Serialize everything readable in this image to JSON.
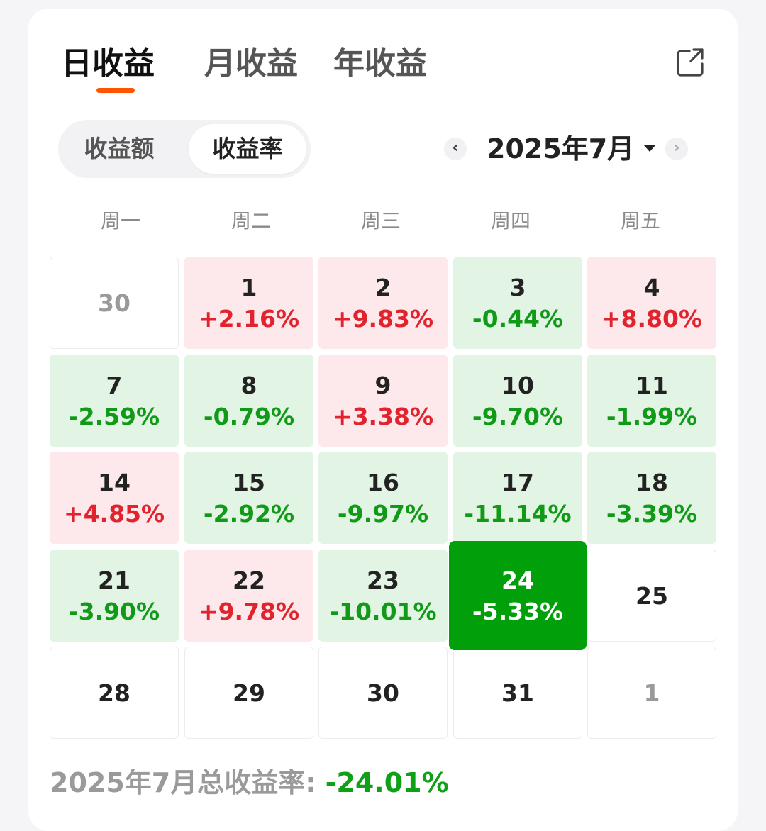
{
  "tabs": [
    {
      "label": "日收益",
      "active": true
    },
    {
      "label": "月收益",
      "active": false
    },
    {
      "label": "年收益",
      "active": false
    }
  ],
  "share_icon": "share-icon",
  "segment": {
    "options": [
      "收益额",
      "收益率"
    ],
    "selected": "收益率"
  },
  "month_picker": {
    "prev_glyph": "‹",
    "label": "2025年7月",
    "next_glyph": "›"
  },
  "weekdays": [
    "周一",
    "周二",
    "周三",
    "周四",
    "周五"
  ],
  "calendar": [
    [
      {
        "day": "30",
        "pct": "",
        "state": "empty-muted"
      },
      {
        "day": "1",
        "pct": "+2.16%",
        "state": "up"
      },
      {
        "day": "2",
        "pct": "+9.83%",
        "state": "up"
      },
      {
        "day": "3",
        "pct": "-0.44%",
        "state": "down"
      },
      {
        "day": "4",
        "pct": "+8.80%",
        "state": "up"
      }
    ],
    [
      {
        "day": "7",
        "pct": "-2.59%",
        "state": "down"
      },
      {
        "day": "8",
        "pct": "-0.79%",
        "state": "down"
      },
      {
        "day": "9",
        "pct": "+3.38%",
        "state": "up"
      },
      {
        "day": "10",
        "pct": "-9.70%",
        "state": "down"
      },
      {
        "day": "11",
        "pct": "-1.99%",
        "state": "down"
      }
    ],
    [
      {
        "day": "14",
        "pct": "+4.85%",
        "state": "up"
      },
      {
        "day": "15",
        "pct": "-2.92%",
        "state": "down"
      },
      {
        "day": "16",
        "pct": "-9.97%",
        "state": "down"
      },
      {
        "day": "17",
        "pct": "-11.14%",
        "state": "down"
      },
      {
        "day": "18",
        "pct": "-3.39%",
        "state": "down"
      }
    ],
    [
      {
        "day": "21",
        "pct": "-3.90%",
        "state": "down"
      },
      {
        "day": "22",
        "pct": "+9.78%",
        "state": "up"
      },
      {
        "day": "23",
        "pct": "-10.01%",
        "state": "down"
      },
      {
        "day": "24",
        "pct": "-5.33%",
        "state": "selected"
      },
      {
        "day": "25",
        "pct": "",
        "state": "empty"
      }
    ],
    [
      {
        "day": "28",
        "pct": "",
        "state": "empty"
      },
      {
        "day": "29",
        "pct": "",
        "state": "empty"
      },
      {
        "day": "30",
        "pct": "",
        "state": "empty"
      },
      {
        "day": "31",
        "pct": "",
        "state": "empty"
      },
      {
        "day": "1",
        "pct": "",
        "state": "empty-muted"
      }
    ]
  ],
  "summary": {
    "label": "2025年7月总收益率: ",
    "value": "-24.01%"
  },
  "colors": {
    "accent": "#ff5500",
    "up_text": "#e0232c",
    "up_bg": "#fde8ec",
    "down_text": "#109a17",
    "down_bg": "#e2f5e4",
    "selected_bg": "#019f09"
  }
}
